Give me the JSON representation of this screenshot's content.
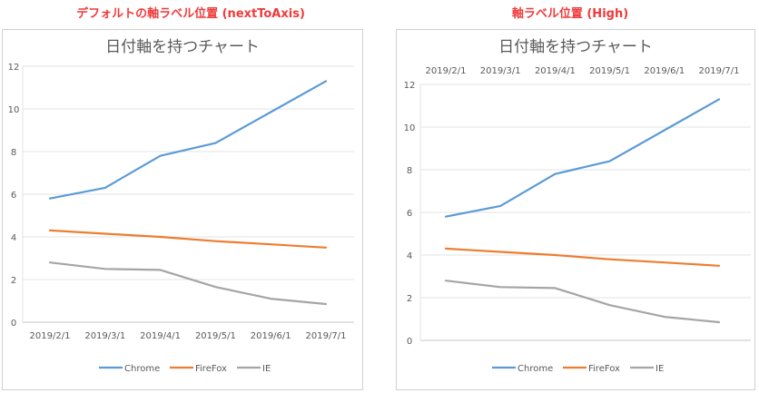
{
  "captions": {
    "left": "デフォルトの軸ラベル位置 (nextToAxis)",
    "right": "軸ラベル位置 (High)"
  },
  "chart_data": [
    {
      "type": "line",
      "title": "日付軸を持つチャート",
      "x_axis_label_position": "bottom",
      "categories": [
        "2019/2/1",
        "2019/3/1",
        "2019/4/1",
        "2019/5/1",
        "2019/6/1",
        "2019/7/1"
      ],
      "yticks": [
        "0",
        "2",
        "4",
        "6",
        "8",
        "10",
        "12"
      ],
      "ylim": [
        0,
        12
      ],
      "grid": true,
      "legend": "bottom",
      "series": [
        {
          "name": "Chrome",
          "color": "#5b9bd5",
          "values": [
            5.8,
            6.3,
            7.8,
            8.4,
            9.85,
            11.3
          ]
        },
        {
          "name": "FireFox",
          "color": "#ed7d31",
          "values": [
            4.3,
            4.15,
            4.0,
            3.8,
            3.65,
            3.5
          ]
        },
        {
          "name": "IE",
          "color": "#a5a5a5",
          "values": [
            2.8,
            2.5,
            2.45,
            1.65,
            1.1,
            0.85
          ]
        }
      ]
    },
    {
      "type": "line",
      "title": "日付軸を持つチャート",
      "x_axis_label_position": "top",
      "categories": [
        "2019/2/1",
        "2019/3/1",
        "2019/4/1",
        "2019/5/1",
        "2019/6/1",
        "2019/7/1"
      ],
      "yticks": [
        "0",
        "2",
        "4",
        "6",
        "8",
        "10",
        "12"
      ],
      "ylim": [
        0,
        12
      ],
      "grid": true,
      "legend": "bottom",
      "series": [
        {
          "name": "Chrome",
          "color": "#5b9bd5",
          "values": [
            5.8,
            6.3,
            7.8,
            8.4,
            9.85,
            11.3
          ]
        },
        {
          "name": "FireFox",
          "color": "#ed7d31",
          "values": [
            4.3,
            4.15,
            4.0,
            3.8,
            3.65,
            3.5
          ]
        },
        {
          "name": "IE",
          "color": "#a5a5a5",
          "values": [
            2.8,
            2.5,
            2.45,
            1.65,
            1.1,
            0.85
          ]
        }
      ]
    }
  ]
}
